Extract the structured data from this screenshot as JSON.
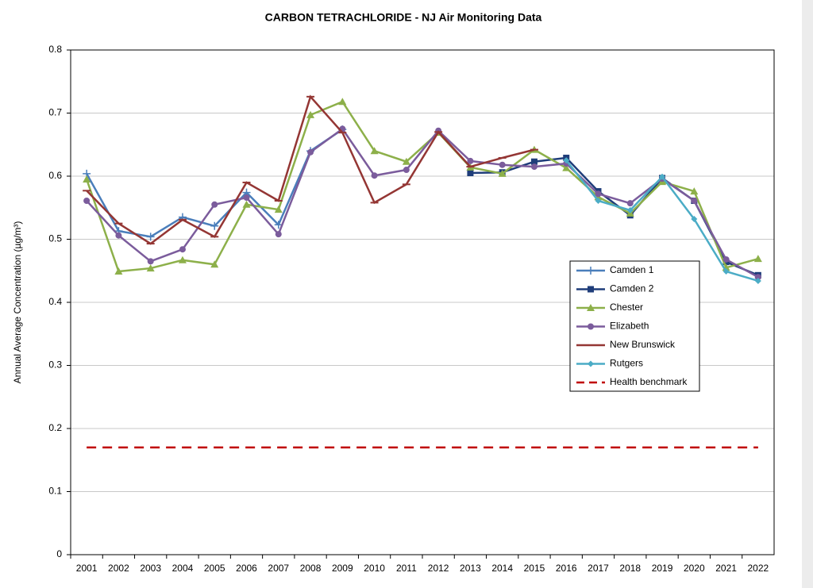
{
  "chart_data": {
    "type": "line",
    "title": "CARBON TETRACHLORIDE - NJ Air Monitoring Data",
    "y_label": "Annual Average Concentration (µg/m³)",
    "categories": [
      "2001",
      "2002",
      "2003",
      "2004",
      "2005",
      "2006",
      "2007",
      "2008",
      "2009",
      "2010",
      "2011",
      "2012",
      "2013",
      "2014",
      "2015",
      "2016",
      "2017",
      "2018",
      "2019",
      "2020",
      "2021",
      "2022"
    ],
    "ylim": [
      0,
      0.8
    ],
    "yticks": [
      0,
      0.1,
      0.2,
      0.3,
      0.4,
      0.5,
      0.6,
      0.7,
      0.8
    ],
    "grid": true,
    "legend": "right",
    "series": [
      {
        "name": "Camden 1",
        "color": "#4a7ebb",
        "marker": "plus",
        "values": [
          0.604,
          0.513,
          0.504,
          0.535,
          0.521,
          0.574,
          0.523,
          0.64,
          0.674,
          null,
          null,
          null,
          null,
          null,
          null,
          null,
          null,
          null,
          null,
          null,
          null,
          null
        ]
      },
      {
        "name": "Camden 2",
        "color": "#1f3d7a",
        "marker": "square",
        "values": [
          null,
          null,
          null,
          null,
          null,
          null,
          null,
          null,
          null,
          null,
          null,
          null,
          0.605,
          0.606,
          0.623,
          0.629,
          0.576,
          0.538,
          0.597,
          0.561,
          0.464,
          0.443
        ]
      },
      {
        "name": "Chester",
        "color": "#8db04a",
        "marker": "triangle",
        "values": [
          0.595,
          0.449,
          0.454,
          0.467,
          0.46,
          0.555,
          0.547,
          0.697,
          0.718,
          0.64,
          0.623,
          0.669,
          0.614,
          0.604,
          0.642,
          0.613,
          0.567,
          0.541,
          0.591,
          0.576,
          0.455,
          0.469
        ]
      },
      {
        "name": "Elizabeth",
        "color": "#7b5c9c",
        "marker": "circle",
        "values": [
          0.561,
          0.506,
          0.465,
          0.484,
          0.555,
          0.566,
          0.508,
          0.638,
          0.675,
          0.601,
          0.61,
          0.672,
          0.624,
          0.618,
          0.615,
          0.62,
          0.572,
          0.557,
          0.596,
          0.561,
          0.468,
          0.44
        ]
      },
      {
        "name": "New Brunswick",
        "color": "#943634",
        "marker": "dash",
        "values": [
          0.577,
          0.525,
          0.493,
          0.531,
          0.504,
          0.59,
          0.561,
          0.726,
          0.669,
          0.558,
          0.587,
          0.67,
          0.615,
          0.629,
          0.642,
          null,
          null,
          null,
          null,
          null,
          null,
          null
        ]
      },
      {
        "name": "Rutgers",
        "color": "#4bacc6",
        "marker": "diamond",
        "values": [
          null,
          null,
          null,
          null,
          null,
          null,
          null,
          null,
          null,
          null,
          null,
          null,
          null,
          null,
          null,
          0.625,
          0.561,
          0.546,
          0.599,
          0.532,
          0.449,
          0.434
        ]
      },
      {
        "name": "Health benchmark",
        "color": "#c00000",
        "marker": "none",
        "dashed": true,
        "values": [
          0.17,
          0.17,
          0.17,
          0.17,
          0.17,
          0.17,
          0.17,
          0.17,
          0.17,
          0.17,
          0.17,
          0.17,
          0.17,
          0.17,
          0.17,
          0.17,
          0.17,
          0.17,
          0.17,
          0.17,
          0.17,
          0.17
        ]
      }
    ]
  }
}
